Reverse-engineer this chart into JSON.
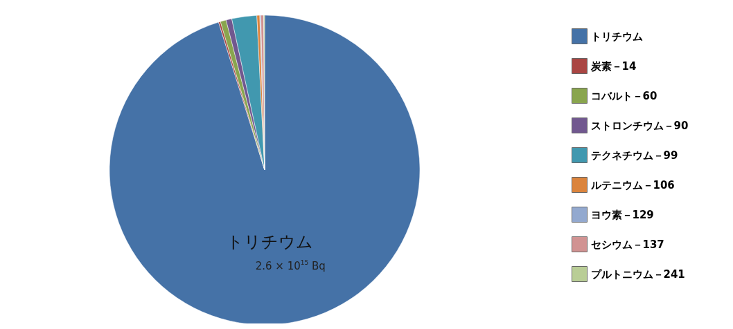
{
  "chart_data": {
    "type": "pie",
    "categories": [
      "トリチウム",
      "炭素－14",
      "コバルト－60",
      "ストロンチウム－90",
      "テクネチウム－99",
      "ルテニウム－106",
      "ヨウ素－129",
      "セシウム－137",
      "プルトニウム－241"
    ],
    "values": [
      95.2,
      0.2,
      0.6,
      0.6,
      2.6,
      0.3,
      0.1,
      0.3,
      0.1
    ],
    "colors": [
      "#4572a7",
      "#aa4643",
      "#89a54e",
      "#71588f",
      "#4198af",
      "#db843d",
      "#93a9cf",
      "#d19392",
      "#b9cd96"
    ],
    "annotations": [
      {
        "text": "2.6 × 10$^{15}$ Bq",
        "x": "トリチウム"
      }
    ],
    "legend": "right"
  }
}
